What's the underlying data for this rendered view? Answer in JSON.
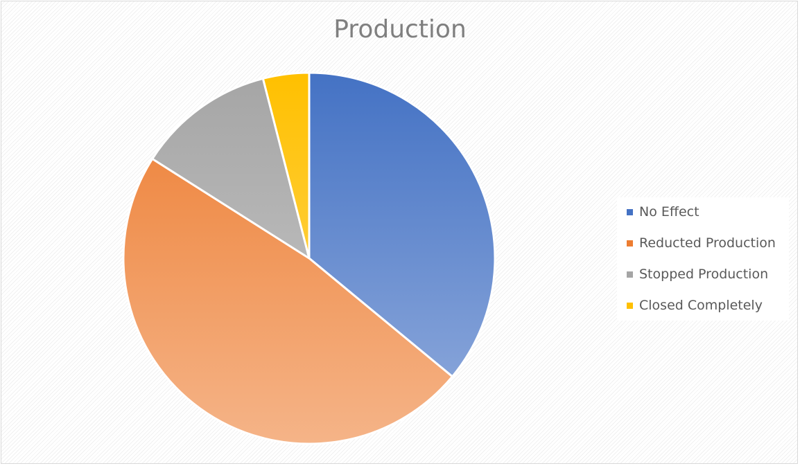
{
  "chart_data": {
    "type": "pie",
    "title": "Production",
    "categories": [
      "No Effect",
      "Reducted Production",
      "Stopped Production",
      "Closed Completely"
    ],
    "values": [
      36,
      48,
      12,
      4
    ],
    "colors": [
      "#4472c4",
      "#ed7d31",
      "#a5a5a5",
      "#ffc000"
    ],
    "start_angle_deg": 0,
    "direction": "clockwise",
    "legend_position": "right"
  }
}
